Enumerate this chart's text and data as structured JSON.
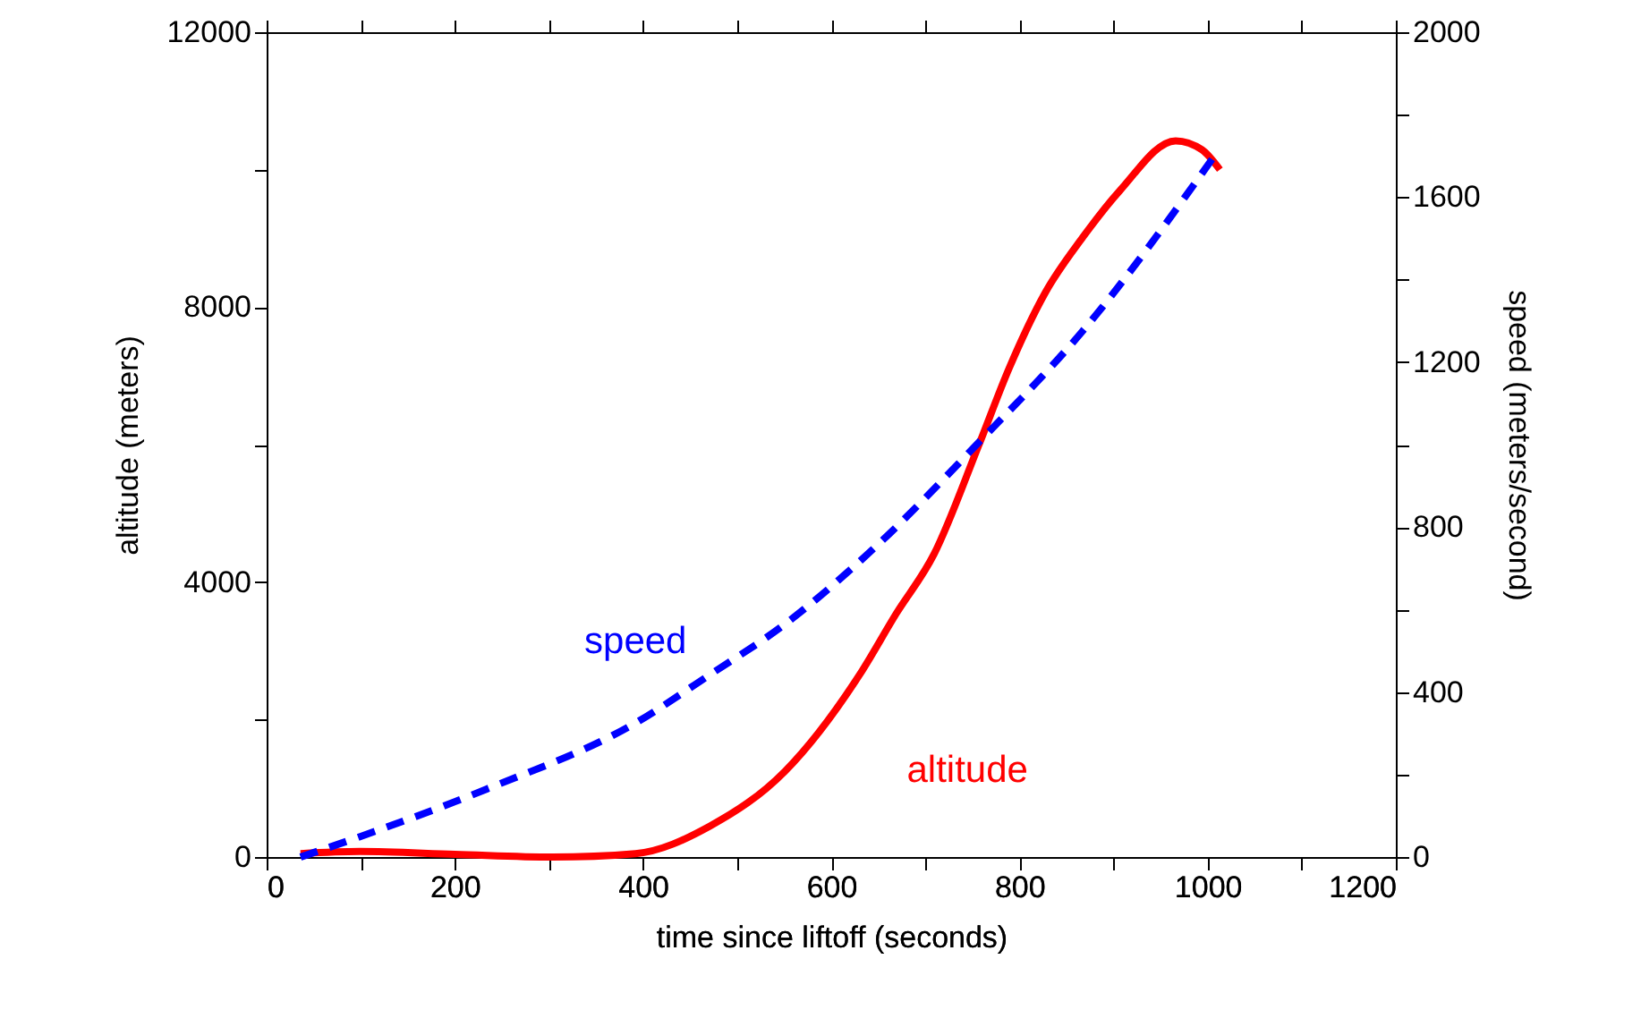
{
  "chart_data": {
    "type": "line",
    "xlabel": "time since liftoff (seconds)",
    "ylabel": "altitude (meters)",
    "y2label": "speed (meters/second)",
    "xlim": [
      0,
      1200
    ],
    "ylim": [
      0,
      12000
    ],
    "y2lim": [
      0,
      2000
    ],
    "xticks": [
      0,
      {
        "value": 100,
        "label": null
      },
      200,
      {
        "value": 300,
        "label": null
      },
      400,
      {
        "value": 500,
        "label": null
      },
      600,
      {
        "value": 700,
        "label": null
      },
      800,
      {
        "value": 900,
        "label": null
      },
      1000,
      {
        "value": 1100,
        "label": null
      },
      1200
    ],
    "yticks": [
      0,
      {
        "value": 2000,
        "label": null
      },
      4000,
      {
        "value": 6000,
        "label": null
      },
      8000,
      {
        "value": 10000,
        "label": null
      },
      12000
    ],
    "y2ticks": [
      0,
      {
        "value": 200,
        "label": null
      },
      400,
      {
        "value": 600,
        "label": null
      },
      800,
      {
        "value": 1000,
        "label": null
      },
      1200,
      {
        "value": 1400,
        "label": null
      },
      1600,
      {
        "value": 1800,
        "label": null
      },
      2000
    ],
    "grid": false,
    "series": [
      {
        "name": "altitude",
        "color": "#ff0000",
        "line_style": "solid",
        "x": [
          36,
          99,
          200,
          304,
          392,
          471,
          551,
          630,
          669,
          709,
          757,
          789,
          827,
          867,
          907,
          966,
          994,
          1013
        ],
        "values": [
          50,
          80,
          40,
          0,
          50,
          450,
          1250,
          2650,
          3540,
          4400,
          6000,
          7110,
          8200,
          9010,
          9700,
          10420,
          10290,
          10000
        ]
      },
      {
        "name": "speed",
        "color": "#0000ff",
        "line_style": "dashed",
        "axis": "y2",
        "x": [
          36,
          100,
          234,
          392,
          471,
          551,
          646,
          757,
          867,
          1010
        ],
        "values": [
          0,
          50,
          165,
          325,
          442,
          565,
          750,
          1006,
          1275,
          1709
        ]
      }
    ]
  }
}
